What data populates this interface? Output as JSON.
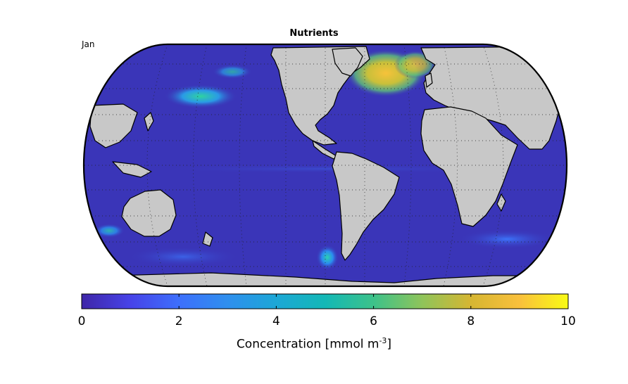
{
  "title": "Nutrients",
  "month": "Jan",
  "colorbar": {
    "label_prefix": "Concentration [mmol m",
    "label_exponent": "-3",
    "label_suffix": "]",
    "ticks": [
      "0",
      "2",
      "4",
      "6",
      "8",
      "10"
    ],
    "range": [
      0,
      10
    ],
    "colormap": [
      "#3e26a8",
      "#4743e8",
      "#3d6ffc",
      "#2f8fee",
      "#1ca7d6",
      "#13b8b6",
      "#3dc28a",
      "#8fc45a",
      "#d6b632",
      "#f9c03c",
      "#f9fb15"
    ]
  },
  "colors": {
    "land": "#c8c8c8",
    "ocean_background": "#3a35b8",
    "coastline": "#000000",
    "graticule": "#222222"
  }
}
